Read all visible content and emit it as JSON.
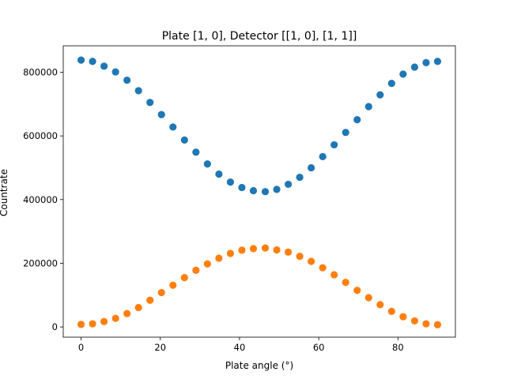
{
  "chart_data": {
    "type": "scatter",
    "title": "Plate [1, 0], Detector [[1, 0], [1, 1]]",
    "xlabel": "Plate angle (°)",
    "ylabel": "Countrate",
    "xlim": [
      -4.5,
      94.5
    ],
    "ylim": [
      -32000,
      883000
    ],
    "xticks": [
      0,
      20,
      40,
      60,
      80
    ],
    "yticks": [
      0,
      200000,
      400000,
      600000,
      800000
    ],
    "xtick_labels": [
      "0",
      "20",
      "40",
      "60",
      "80"
    ],
    "ytick_labels": [
      "0",
      "200000",
      "400000",
      "600000",
      "800000"
    ],
    "grid": false,
    "x": [
      0,
      2.9,
      5.8,
      8.7,
      11.6,
      14.5,
      17.4,
      20.3,
      23.2,
      26.1,
      29.0,
      31.9,
      34.8,
      37.7,
      40.6,
      43.5,
      46.5,
      49.4,
      52.3,
      55.2,
      58.1,
      61.0,
      63.9,
      66.8,
      69.7,
      72.6,
      75.5,
      78.4,
      81.3,
      84.2,
      87.1,
      90.0
    ],
    "series": [
      {
        "color": "#1f77b4",
        "values": [
          838000,
          834000,
          819000,
          801000,
          775000,
          742000,
          705000,
          667000,
          628000,
          587000,
          549000,
          512000,
          480000,
          455000,
          438000,
          428000,
          425000,
          432000,
          448000,
          470000,
          500000,
          535000,
          572000,
          611000,
          651000,
          692000,
          729000,
          765000,
          794000,
          816000,
          830000,
          834000
        ]
      },
      {
        "color": "#ff7f0e",
        "values": [
          8000,
          10000,
          17000,
          27000,
          42000,
          61000,
          84000,
          108000,
          131000,
          155000,
          178000,
          198000,
          216000,
          231000,
          241000,
          246000,
          248000,
          242000,
          235000,
          222000,
          206000,
          186000,
          164000,
          140000,
          115000,
          92000,
          70000,
          49000,
          32000,
          19000,
          10000,
          7000
        ]
      }
    ]
  }
}
